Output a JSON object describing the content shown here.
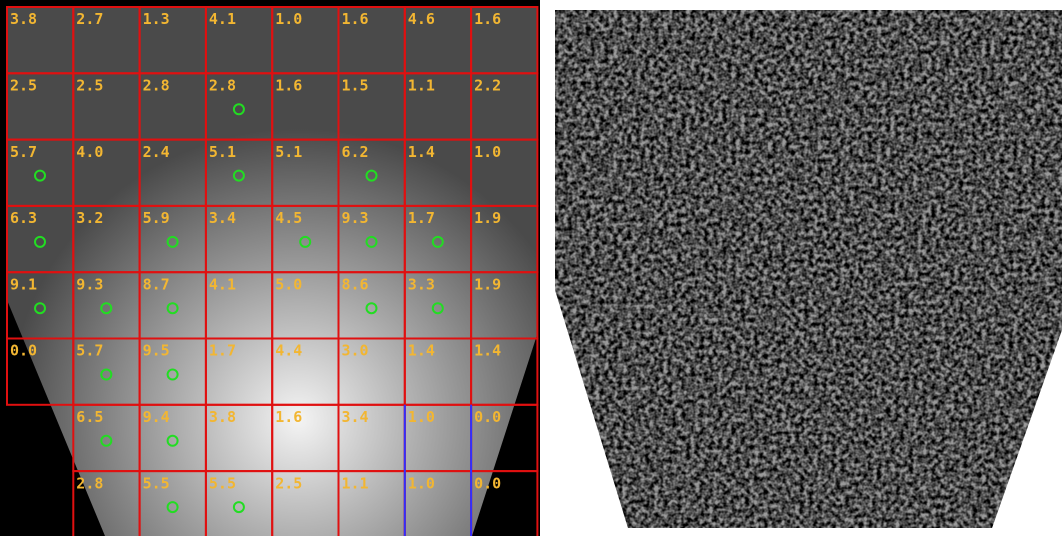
{
  "grid": {
    "rows": [
      [
        "3.8",
        "2.7",
        "1.3",
        "4.1",
        "1.0",
        "1.6",
        "4.6",
        "1.6"
      ],
      [
        "2.5",
        "2.5",
        "2.8",
        "2.8",
        "1.6",
        "1.5",
        "1.1",
        "2.2"
      ],
      [
        "5.7",
        "4.0",
        "2.4",
        "5.1",
        "5.1",
        "6.2",
        "1.4",
        "1.0"
      ],
      [
        "6.3",
        "3.2",
        "5.9",
        "3.4",
        "4.5",
        "9.3",
        "1.7",
        "1.9"
      ],
      [
        "9.1",
        "9.3",
        "8.7",
        "4.1",
        "5.0",
        "8.6",
        "3.3",
        "1.9"
      ],
      [
        "0.0",
        "5.7",
        "9.5",
        "1.7",
        "4.4",
        "3.0",
        "1.4",
        "1.4"
      ],
      [
        null,
        "6.5",
        "9.4",
        "3.8",
        "1.6",
        "3.4",
        "1.0",
        "0.0"
      ],
      [
        null,
        "2.8",
        "5.5",
        "5.5",
        "2.5",
        "1.1",
        "1.0",
        "0.0"
      ]
    ]
  }
}
